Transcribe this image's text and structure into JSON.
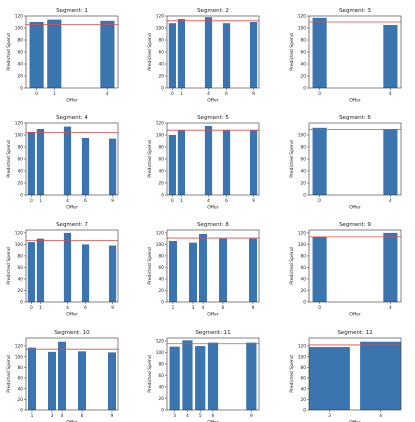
{
  "colors": {
    "bar": "#3a75af",
    "refline": "#e04a4a",
    "axis": "#333333"
  },
  "chart_data": [
    {
      "type": "bar",
      "title": "Segment: 1",
      "xlabel": "Offer",
      "ylabel": "Predicted Spend",
      "ylim": [
        0,
        120
      ],
      "yticks": [
        0,
        20,
        40,
        60,
        80,
        100,
        120
      ],
      "xlim": [
        -0.6,
        4.6
      ],
      "bars": [
        {
          "x": 0,
          "value": 110
        },
        {
          "x": 1,
          "value": 114
        },
        {
          "x": 4,
          "value": 112
        }
      ],
      "xticks": [
        {
          "x": 0,
          "label": "0"
        },
        {
          "x": 1,
          "label": "1"
        },
        {
          "x": 4,
          "label": "4"
        }
      ],
      "reference_value": 106
    },
    {
      "type": "bar",
      "title": "Segment: 2",
      "xlabel": "Offer",
      "ylabel": "Predicted Spend",
      "ylim": [
        0,
        120
      ],
      "yticks": [
        0,
        20,
        40,
        60,
        80,
        100,
        120
      ],
      "xlim": [
        -0.6,
        9.6
      ],
      "bars": [
        {
          "x": 0,
          "value": 108
        },
        {
          "x": 1,
          "value": 115
        },
        {
          "x": 4,
          "value": 118
        },
        {
          "x": 6,
          "value": 108
        },
        {
          "x": 9,
          "value": 110
        }
      ],
      "xticks": [
        {
          "x": 0,
          "label": "0"
        },
        {
          "x": 1,
          "label": "1"
        },
        {
          "x": 4,
          "label": "4"
        },
        {
          "x": 6,
          "label": "6"
        },
        {
          "x": 9,
          "label": "9"
        }
      ],
      "reference_value": 112
    },
    {
      "type": "bar",
      "title": "Segment: 3",
      "xlabel": "Offer",
      "ylabel": "Predicted Spend",
      "ylim": [
        0,
        120
      ],
      "yticks": [
        0,
        20,
        40,
        60,
        80,
        100,
        120
      ],
      "xlim": [
        -0.6,
        4.6
      ],
      "bars": [
        {
          "x": 0,
          "value": 117
        },
        {
          "x": 4,
          "value": 105
        }
      ],
      "xticks": [
        {
          "x": 0,
          "label": "0"
        },
        {
          "x": 4,
          "label": "4"
        }
      ],
      "reference_value": 110
    },
    {
      "type": "bar",
      "title": "Segment: 4",
      "xlabel": "Offer",
      "ylabel": "Predicted Spend",
      "ylim": [
        0,
        120
      ],
      "yticks": [
        0,
        20,
        40,
        60,
        80,
        100,
        120
      ],
      "xlim": [
        -0.6,
        9.6
      ],
      "bars": [
        {
          "x": 0,
          "value": 105
        },
        {
          "x": 1,
          "value": 110
        },
        {
          "x": 4,
          "value": 114
        },
        {
          "x": 6,
          "value": 95
        },
        {
          "x": 9,
          "value": 94
        }
      ],
      "xticks": [
        {
          "x": 0,
          "label": "0"
        },
        {
          "x": 1,
          "label": "1"
        },
        {
          "x": 4,
          "label": "4"
        },
        {
          "x": 6,
          "label": "6"
        },
        {
          "x": 9,
          "label": "9"
        }
      ],
      "reference_value": 104
    },
    {
      "type": "bar",
      "title": "Segment: 5",
      "xlabel": "Offer",
      "ylabel": "Predicted Spend",
      "ylim": [
        0,
        120
      ],
      "yticks": [
        0,
        20,
        40,
        60,
        80,
        100,
        120
      ],
      "xlim": [
        -0.6,
        9.6
      ],
      "bars": [
        {
          "x": 0,
          "value": 100
        },
        {
          "x": 1,
          "value": 108
        },
        {
          "x": 4,
          "value": 115
        },
        {
          "x": 6,
          "value": 108
        },
        {
          "x": 9,
          "value": 108
        }
      ],
      "xticks": [
        {
          "x": 0,
          "label": "0"
        },
        {
          "x": 1,
          "label": "1"
        },
        {
          "x": 4,
          "label": "4"
        },
        {
          "x": 6,
          "label": "6"
        },
        {
          "x": 9,
          "label": "9"
        }
      ],
      "reference_value": 108
    },
    {
      "type": "bar",
      "title": "Segment: 6",
      "xlabel": "Offer",
      "ylabel": "Predicted Spend",
      "ylim": [
        0,
        120
      ],
      "yticks": [
        0,
        20,
        40,
        60,
        80,
        100
      ],
      "xlim": [
        -0.6,
        4.6
      ],
      "bars": [
        {
          "x": 0,
          "value": 112
        },
        {
          "x": 4,
          "value": 110
        }
      ],
      "xticks": [
        {
          "x": 0,
          "label": "0"
        },
        {
          "x": 4,
          "label": "4"
        }
      ],
      "reference_value": 109
    },
    {
      "type": "bar",
      "title": "Segment: 7",
      "xlabel": "Offer",
      "ylabel": "Predicted Spend",
      "ylim": [
        0,
        125
      ],
      "yticks": [
        0,
        20,
        40,
        60,
        80,
        100,
        120
      ],
      "xlim": [
        -0.6,
        9.6
      ],
      "bars": [
        {
          "x": 0,
          "value": 104
        },
        {
          "x": 1,
          "value": 110
        },
        {
          "x": 4,
          "value": 120
        },
        {
          "x": 6,
          "value": 100
        },
        {
          "x": 9,
          "value": 98
        }
      ],
      "xticks": [
        {
          "x": 0,
          "label": "0"
        },
        {
          "x": 1,
          "label": "1"
        },
        {
          "x": 4,
          "label": "4"
        },
        {
          "x": 6,
          "label": "6"
        },
        {
          "x": 9,
          "label": "9"
        }
      ],
      "reference_value": 107
    },
    {
      "type": "bar",
      "title": "Segment: 8",
      "xlabel": "Offer",
      "ylabel": "Predicted Spend",
      "ylim": [
        0,
        125
      ],
      "yticks": [
        0,
        20,
        40,
        60,
        80,
        100,
        120
      ],
      "xlim": [
        0.4,
        9.6
      ],
      "bars": [
        {
          "x": 1,
          "value": 106
        },
        {
          "x": 3,
          "value": 103
        },
        {
          "x": 4,
          "value": 118
        },
        {
          "x": 6,
          "value": 110
        },
        {
          "x": 9,
          "value": 110
        }
      ],
      "xticks": [
        {
          "x": 1,
          "label": "1"
        },
        {
          "x": 3,
          "label": "3"
        },
        {
          "x": 4,
          "label": "4"
        },
        {
          "x": 6,
          "label": "6"
        },
        {
          "x": 9,
          "label": "9"
        }
      ],
      "reference_value": 111
    },
    {
      "type": "bar",
      "title": "Segment: 9",
      "xlabel": "Offer",
      "ylabel": "Predicted Spend",
      "ylim": [
        0,
        125
      ],
      "yticks": [
        0,
        20,
        40,
        60,
        80,
        100,
        120
      ],
      "xlim": [
        -0.6,
        4.6
      ],
      "bars": [
        {
          "x": 0,
          "value": 113
        },
        {
          "x": 4,
          "value": 120
        }
      ],
      "xticks": [
        {
          "x": 0,
          "label": "0"
        },
        {
          "x": 4,
          "label": "4"
        }
      ],
      "reference_value": 113
    },
    {
      "type": "bar",
      "title": "Segment: 10",
      "xlabel": "Offer",
      "ylabel": "Predicted Spend",
      "ylim": [
        0,
        135
      ],
      "yticks": [
        0,
        20,
        40,
        60,
        80,
        100,
        120
      ],
      "xlim": [
        0.4,
        9.6
      ],
      "bars": [
        {
          "x": 1,
          "value": 117
        },
        {
          "x": 3,
          "value": 109
        },
        {
          "x": 4,
          "value": 128
        },
        {
          "x": 6,
          "value": 110
        },
        {
          "x": 9,
          "value": 108
        }
      ],
      "xticks": [
        {
          "x": 1,
          "label": "1"
        },
        {
          "x": 3,
          "label": "3"
        },
        {
          "x": 4,
          "label": "4"
        },
        {
          "x": 6,
          "label": "6"
        },
        {
          "x": 9,
          "label": "9"
        }
      ],
      "reference_value": 114
    },
    {
      "type": "bar",
      "title": "Segment: 11",
      "xlabel": "Offer",
      "ylabel": "Predicted Spend",
      "ylim": [
        0,
        125
      ],
      "yticks": [
        0,
        20,
        40,
        60,
        80,
        100,
        120
      ],
      "xlim": [
        2.4,
        9.6
      ],
      "bars": [
        {
          "x": 3,
          "value": 110
        },
        {
          "x": 4,
          "value": 121
        },
        {
          "x": 5,
          "value": 111
        },
        {
          "x": 6,
          "value": 117
        },
        {
          "x": 9,
          "value": 117
        }
      ],
      "xticks": [
        {
          "x": 3,
          "label": "3"
        },
        {
          "x": 4,
          "label": "4"
        },
        {
          "x": 5,
          "label": "5"
        },
        {
          "x": 6,
          "label": "6"
        },
        {
          "x": 9,
          "label": "9"
        }
      ],
      "reference_value": 115
    },
    {
      "type": "bar",
      "title": "Segment: 12",
      "xlabel": "Offer",
      "ylabel": "Predicted Spend",
      "ylim": [
        0,
        135
      ],
      "yticks": [
        0,
        20,
        40,
        60,
        80,
        100,
        120
      ],
      "xlim": [
        2.6,
        4.4
      ],
      "bars": [
        {
          "x": 3,
          "value": 118
        },
        {
          "x": 4,
          "value": 128
        }
      ],
      "xticks": [
        {
          "x": 3,
          "label": "3"
        },
        {
          "x": 4,
          "label": "4"
        }
      ],
      "reference_value": 122
    }
  ]
}
